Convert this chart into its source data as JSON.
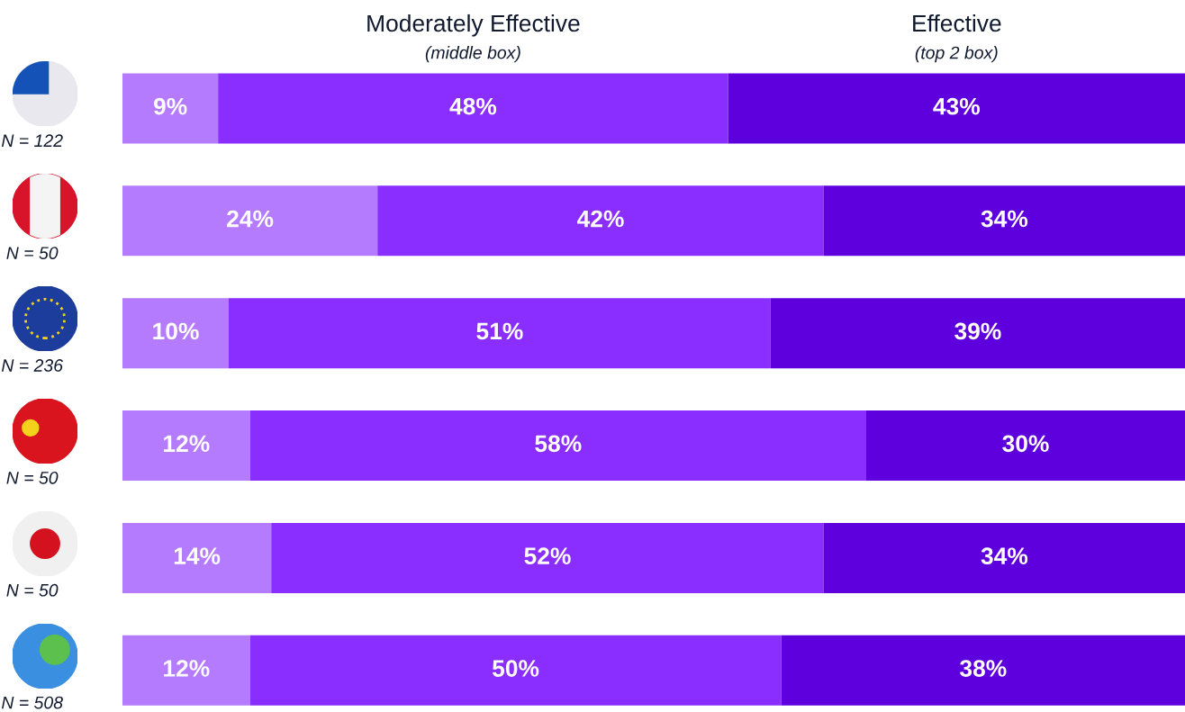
{
  "chart_data": {
    "type": "bar",
    "orientation": "horizontal",
    "stacked": true,
    "categories": [
      "N = 122",
      "N = 50",
      "N = 236",
      "N = 50",
      "N = 50",
      "N = 508"
    ],
    "series": [
      {
        "color": "#b57bff",
        "values": [
          9,
          24,
          10,
          12,
          14,
          12
        ],
        "value_labels": [
          "9%",
          "24%",
          "10%",
          "12%",
          "14%",
          "12%"
        ]
      },
      {
        "name": "Moderately Effective",
        "color": "#8a2eff",
        "values": [
          48,
          42,
          51,
          58,
          52,
          50
        ],
        "value_labels": [
          "48%",
          "42%",
          "51%",
          "58%",
          "52%",
          "50%"
        ]
      },
      {
        "name": "Effective",
        "color": "#5e00de",
        "values": [
          43,
          34,
          39,
          30,
          34,
          38
        ],
        "value_labels": [
          "43%",
          "34%",
          "39%",
          "30%",
          "34%",
          "38%"
        ]
      }
    ],
    "annotations": [
      "(middle box)",
      "(top 2 box)"
    ],
    "tick_labels": "y"
  }
}
